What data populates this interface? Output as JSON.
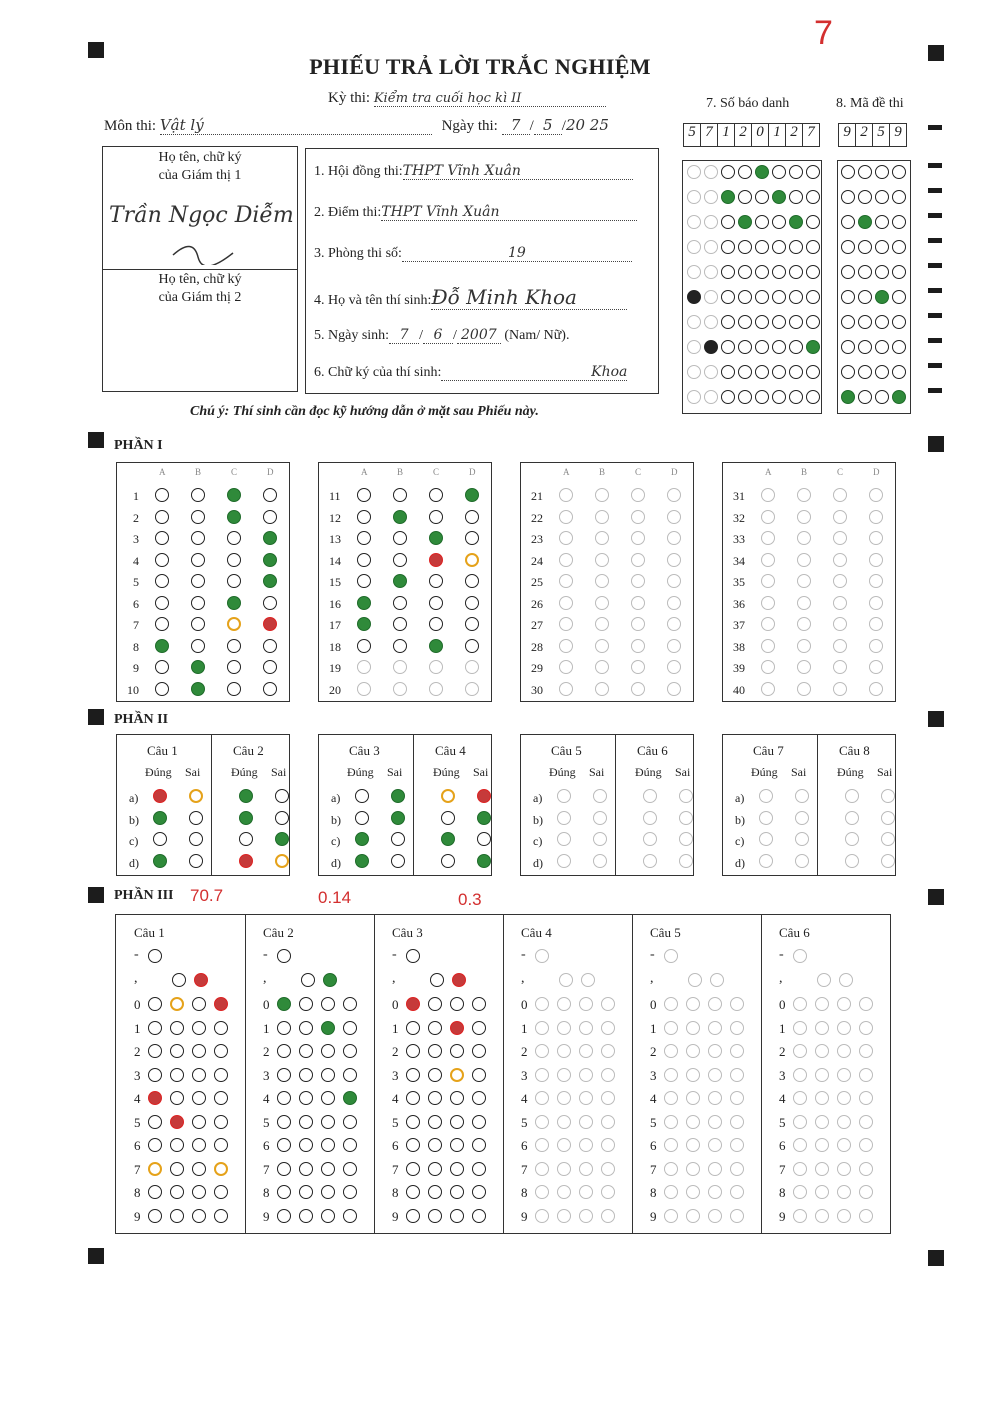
{
  "page_number": "7",
  "title": "PHIẾU TRẢ LỜI TRẮC NGHIỆM",
  "exam": {
    "ky_thi_label": "Kỳ thi:",
    "ky_thi_value": "Kiểm tra cuối học kì II",
    "mon_thi_label": "Môn thi:",
    "mon_thi_value": "Vật lý",
    "ngay_thi_label": "Ngày thi:",
    "ngay_thi_day": "7",
    "ngay_thi_month": "5",
    "ngay_thi_year": "20 25"
  },
  "proctors": {
    "gt1_label_1": "Họ tên, chữ ký",
    "gt1_label_2": "của Giám thị 1",
    "gt1_sign": "Trần Ngọc Diễm",
    "gt2_label_1": "Họ tên, chữ ký",
    "gt2_label_2": "của Giám thị 2"
  },
  "info": {
    "hoi_dong_label": "1. Hội đồng thi:",
    "hoi_dong_value": "THPT Vĩnh Xuân",
    "diem_thi_label": "2. Điểm thi:",
    "diem_thi_value": "THPT Vĩnh Xuân",
    "phong_thi_label": "3. Phòng thi số:",
    "phong_thi_value": "19",
    "ho_ten_label": "4. Họ và tên thí sinh:",
    "ho_ten_value": "Đỗ Minh Khoa",
    "ngay_sinh_label": "5. Ngày sinh:",
    "ngay_sinh_day": "7",
    "ngay_sinh_month": "6",
    "ngay_sinh_year": "2007",
    "gioi_tinh": "(Nam/ Nữ).",
    "chu_ky_label": "6. Chữ ký của thí sinh:",
    "chu_ky_value": "Khoa"
  },
  "note": "Chú ý: Thí sinh cần đọc kỹ hướng dẫn ở mặt sau Phiếu này.",
  "sbd": {
    "label": "7. Số báo danh",
    "digits": [
      "5",
      "7",
      "1",
      "2",
      "0",
      "1",
      "2",
      "7"
    ]
  },
  "made": {
    "label": "8. Mã đề thi",
    "digits": [
      "9",
      "2",
      "5",
      "9"
    ]
  },
  "part1": {
    "label": "PHẦN I",
    "options": [
      "A",
      "B",
      "C",
      "D"
    ],
    "answers": [
      {
        "q": "1",
        "c": "C"
      },
      {
        "q": "2",
        "c": "C"
      },
      {
        "q": "3",
        "c": "D"
      },
      {
        "q": "4",
        "c": "D"
      },
      {
        "q": "5",
        "c": "D"
      },
      {
        "q": "6",
        "c": "C"
      },
      {
        "q": "7",
        "c": "D",
        "correct": "C"
      },
      {
        "q": "8",
        "c": "A"
      },
      {
        "q": "9",
        "c": "B"
      },
      {
        "q": "10",
        "c": "B"
      },
      {
        "q": "11",
        "c": "D"
      },
      {
        "q": "12",
        "c": "B"
      },
      {
        "q": "13",
        "c": "C"
      },
      {
        "q": "14",
        "c": "C",
        "correct": "D"
      },
      {
        "q": "15",
        "c": "B"
      },
      {
        "q": "16",
        "c": "A"
      },
      {
        "q": "17",
        "c": "A"
      },
      {
        "q": "18",
        "c": "C"
      }
    ],
    "total_questions": 40
  },
  "part2": {
    "label": "PHẦN II",
    "dung": "Đúng",
    "sai": "Sai",
    "questions": [
      "Câu 1",
      "Câu 2",
      "Câu 3",
      "Câu 4",
      "Câu 5",
      "Câu 6",
      "Câu 7",
      "Câu 8"
    ],
    "rows": [
      "a)",
      "b)",
      "c)",
      "d)"
    ]
  },
  "part3": {
    "label": "PHẦN III",
    "score_1": "70.7",
    "score_2": "0.14",
    "score_3": "0.3",
    "questions": [
      "Câu 1",
      "Câu 2",
      "Câu 3",
      "Câu 4",
      "Câu 5",
      "Câu 6"
    ],
    "minus": "-",
    "comma": ",",
    "digit_rows": [
      "0",
      "1",
      "2",
      "3",
      "4",
      "5",
      "6",
      "7",
      "8",
      "9"
    ]
  }
}
